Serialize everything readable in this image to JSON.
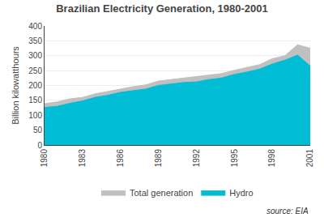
{
  "chart_data": {
    "type": "area",
    "title": "Brazilian Electricity Generation, 1980-2001",
    "ylabel": "Billion kilowatthours",
    "annotations": [
      "source: EIA"
    ],
    "x": [
      1980,
      1981,
      1982,
      1983,
      1984,
      1985,
      1986,
      1987,
      1988,
      1989,
      1990,
      1991,
      1992,
      1993,
      1994,
      1995,
      1996,
      1997,
      1998,
      1999,
      2000,
      2001
    ],
    "series": [
      {
        "name": "Total generation",
        "color": "#c0c0c0",
        "values": [
          139,
          145,
          155,
          160,
          172,
          180,
          190,
          196,
          202,
          215,
          220,
          225,
          228,
          235,
          240,
          251,
          260,
          270,
          290,
          300,
          337,
          325
        ]
      },
      {
        "name": "Hydro",
        "color": "#00bcd4",
        "values": [
          126,
          130,
          140,
          148,
          160,
          167,
          177,
          183,
          188,
          200,
          205,
          210,
          212,
          220,
          225,
          237,
          245,
          255,
          272,
          285,
          302,
          265
        ]
      }
    ],
    "xlim": [
      1980,
      2001
    ],
    "xticks": [
      1980,
      1983,
      1986,
      1989,
      1992,
      1995,
      1998,
      2001
    ],
    "ylim": [
      0,
      400
    ],
    "yticks": [
      0,
      50,
      100,
      150,
      200,
      250,
      300,
      350,
      400
    ],
    "grid": "y",
    "legend": "bottom",
    "stacked": false
  }
}
